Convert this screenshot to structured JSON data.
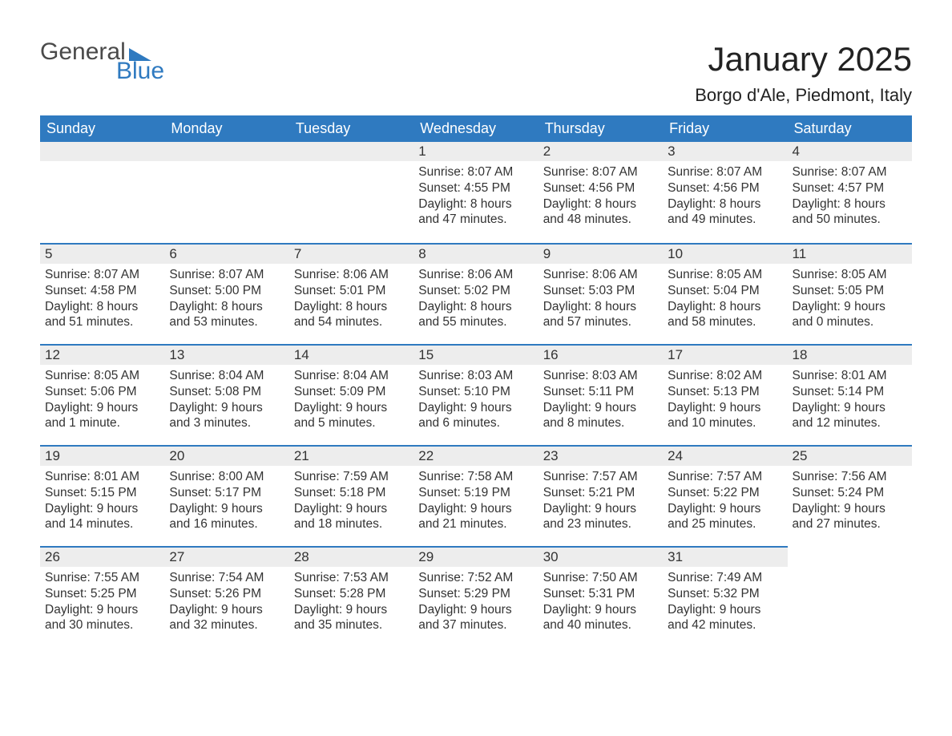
{
  "logo": {
    "part1": "General",
    "part2": "Blue"
  },
  "title": "January 2025",
  "location": "Borgo d'Ale, Piedmont, Italy",
  "colors": {
    "header_bg": "#2f7ac0",
    "header_text": "#ffffff",
    "daynum_bg": "#ededed",
    "divider": "#2f7ac0",
    "text": "#333333",
    "logo_gray": "#4a4a4a",
    "logo_blue": "#2f7ac0",
    "background": "#ffffff"
  },
  "weekdays": [
    "Sunday",
    "Monday",
    "Tuesday",
    "Wednesday",
    "Thursday",
    "Friday",
    "Saturday"
  ],
  "weeks": [
    [
      null,
      null,
      null,
      {
        "n": "1",
        "sunrise": "Sunrise: 8:07 AM",
        "sunset": "Sunset: 4:55 PM",
        "day1": "Daylight: 8 hours",
        "day2": "and 47 minutes."
      },
      {
        "n": "2",
        "sunrise": "Sunrise: 8:07 AM",
        "sunset": "Sunset: 4:56 PM",
        "day1": "Daylight: 8 hours",
        "day2": "and 48 minutes."
      },
      {
        "n": "3",
        "sunrise": "Sunrise: 8:07 AM",
        "sunset": "Sunset: 4:56 PM",
        "day1": "Daylight: 8 hours",
        "day2": "and 49 minutes."
      },
      {
        "n": "4",
        "sunrise": "Sunrise: 8:07 AM",
        "sunset": "Sunset: 4:57 PM",
        "day1": "Daylight: 8 hours",
        "day2": "and 50 minutes."
      }
    ],
    [
      {
        "n": "5",
        "sunrise": "Sunrise: 8:07 AM",
        "sunset": "Sunset: 4:58 PM",
        "day1": "Daylight: 8 hours",
        "day2": "and 51 minutes."
      },
      {
        "n": "6",
        "sunrise": "Sunrise: 8:07 AM",
        "sunset": "Sunset: 5:00 PM",
        "day1": "Daylight: 8 hours",
        "day2": "and 53 minutes."
      },
      {
        "n": "7",
        "sunrise": "Sunrise: 8:06 AM",
        "sunset": "Sunset: 5:01 PM",
        "day1": "Daylight: 8 hours",
        "day2": "and 54 minutes."
      },
      {
        "n": "8",
        "sunrise": "Sunrise: 8:06 AM",
        "sunset": "Sunset: 5:02 PM",
        "day1": "Daylight: 8 hours",
        "day2": "and 55 minutes."
      },
      {
        "n": "9",
        "sunrise": "Sunrise: 8:06 AM",
        "sunset": "Sunset: 5:03 PM",
        "day1": "Daylight: 8 hours",
        "day2": "and 57 minutes."
      },
      {
        "n": "10",
        "sunrise": "Sunrise: 8:05 AM",
        "sunset": "Sunset: 5:04 PM",
        "day1": "Daylight: 8 hours",
        "day2": "and 58 minutes."
      },
      {
        "n": "11",
        "sunrise": "Sunrise: 8:05 AM",
        "sunset": "Sunset: 5:05 PM",
        "day1": "Daylight: 9 hours",
        "day2": "and 0 minutes."
      }
    ],
    [
      {
        "n": "12",
        "sunrise": "Sunrise: 8:05 AM",
        "sunset": "Sunset: 5:06 PM",
        "day1": "Daylight: 9 hours",
        "day2": "and 1 minute."
      },
      {
        "n": "13",
        "sunrise": "Sunrise: 8:04 AM",
        "sunset": "Sunset: 5:08 PM",
        "day1": "Daylight: 9 hours",
        "day2": "and 3 minutes."
      },
      {
        "n": "14",
        "sunrise": "Sunrise: 8:04 AM",
        "sunset": "Sunset: 5:09 PM",
        "day1": "Daylight: 9 hours",
        "day2": "and 5 minutes."
      },
      {
        "n": "15",
        "sunrise": "Sunrise: 8:03 AM",
        "sunset": "Sunset: 5:10 PM",
        "day1": "Daylight: 9 hours",
        "day2": "and 6 minutes."
      },
      {
        "n": "16",
        "sunrise": "Sunrise: 8:03 AM",
        "sunset": "Sunset: 5:11 PM",
        "day1": "Daylight: 9 hours",
        "day2": "and 8 minutes."
      },
      {
        "n": "17",
        "sunrise": "Sunrise: 8:02 AM",
        "sunset": "Sunset: 5:13 PM",
        "day1": "Daylight: 9 hours",
        "day2": "and 10 minutes."
      },
      {
        "n": "18",
        "sunrise": "Sunrise: 8:01 AM",
        "sunset": "Sunset: 5:14 PM",
        "day1": "Daylight: 9 hours",
        "day2": "and 12 minutes."
      }
    ],
    [
      {
        "n": "19",
        "sunrise": "Sunrise: 8:01 AM",
        "sunset": "Sunset: 5:15 PM",
        "day1": "Daylight: 9 hours",
        "day2": "and 14 minutes."
      },
      {
        "n": "20",
        "sunrise": "Sunrise: 8:00 AM",
        "sunset": "Sunset: 5:17 PM",
        "day1": "Daylight: 9 hours",
        "day2": "and 16 minutes."
      },
      {
        "n": "21",
        "sunrise": "Sunrise: 7:59 AM",
        "sunset": "Sunset: 5:18 PM",
        "day1": "Daylight: 9 hours",
        "day2": "and 18 minutes."
      },
      {
        "n": "22",
        "sunrise": "Sunrise: 7:58 AM",
        "sunset": "Sunset: 5:19 PM",
        "day1": "Daylight: 9 hours",
        "day2": "and 21 minutes."
      },
      {
        "n": "23",
        "sunrise": "Sunrise: 7:57 AM",
        "sunset": "Sunset: 5:21 PM",
        "day1": "Daylight: 9 hours",
        "day2": "and 23 minutes."
      },
      {
        "n": "24",
        "sunrise": "Sunrise: 7:57 AM",
        "sunset": "Sunset: 5:22 PM",
        "day1": "Daylight: 9 hours",
        "day2": "and 25 minutes."
      },
      {
        "n": "25",
        "sunrise": "Sunrise: 7:56 AM",
        "sunset": "Sunset: 5:24 PM",
        "day1": "Daylight: 9 hours",
        "day2": "and 27 minutes."
      }
    ],
    [
      {
        "n": "26",
        "sunrise": "Sunrise: 7:55 AM",
        "sunset": "Sunset: 5:25 PM",
        "day1": "Daylight: 9 hours",
        "day2": "and 30 minutes."
      },
      {
        "n": "27",
        "sunrise": "Sunrise: 7:54 AM",
        "sunset": "Sunset: 5:26 PM",
        "day1": "Daylight: 9 hours",
        "day2": "and 32 minutes."
      },
      {
        "n": "28",
        "sunrise": "Sunrise: 7:53 AM",
        "sunset": "Sunset: 5:28 PM",
        "day1": "Daylight: 9 hours",
        "day2": "and 35 minutes."
      },
      {
        "n": "29",
        "sunrise": "Sunrise: 7:52 AM",
        "sunset": "Sunset: 5:29 PM",
        "day1": "Daylight: 9 hours",
        "day2": "and 37 minutes."
      },
      {
        "n": "30",
        "sunrise": "Sunrise: 7:50 AM",
        "sunset": "Sunset: 5:31 PM",
        "day1": "Daylight: 9 hours",
        "day2": "and 40 minutes."
      },
      {
        "n": "31",
        "sunrise": "Sunrise: 7:49 AM",
        "sunset": "Sunset: 5:32 PM",
        "day1": "Daylight: 9 hours",
        "day2": "and 42 minutes."
      },
      null
    ]
  ]
}
